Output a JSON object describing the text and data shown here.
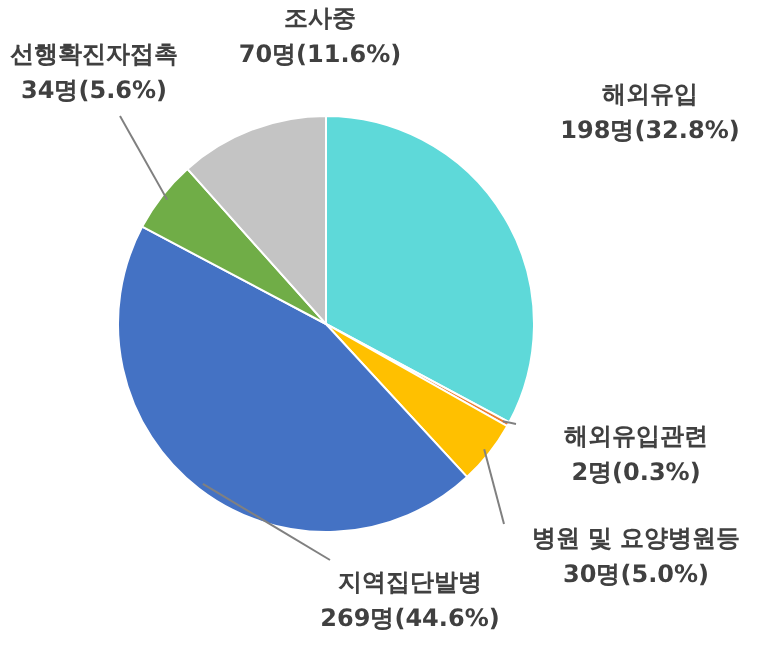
{
  "chart_data": {
    "type": "pie",
    "categories": [
      "해외유입",
      "해외유입관련",
      "병원 및 요양병원등",
      "지역집단발병",
      "선행확진자접촉",
      "조사중"
    ],
    "values": [
      198,
      2,
      30,
      269,
      34,
      70
    ],
    "colors": [
      "#5ed9d9",
      "#ed7d31",
      "#ffc000",
      "#4472c4",
      "#70ad47",
      "#c4c4c4"
    ],
    "value_labels": [
      "198명(32.8%)",
      "2명(0.3%)",
      "30명(5.0%)",
      "269명(44.6%)",
      "34명(5.6%)",
      "70명(11.6%)"
    ]
  }
}
